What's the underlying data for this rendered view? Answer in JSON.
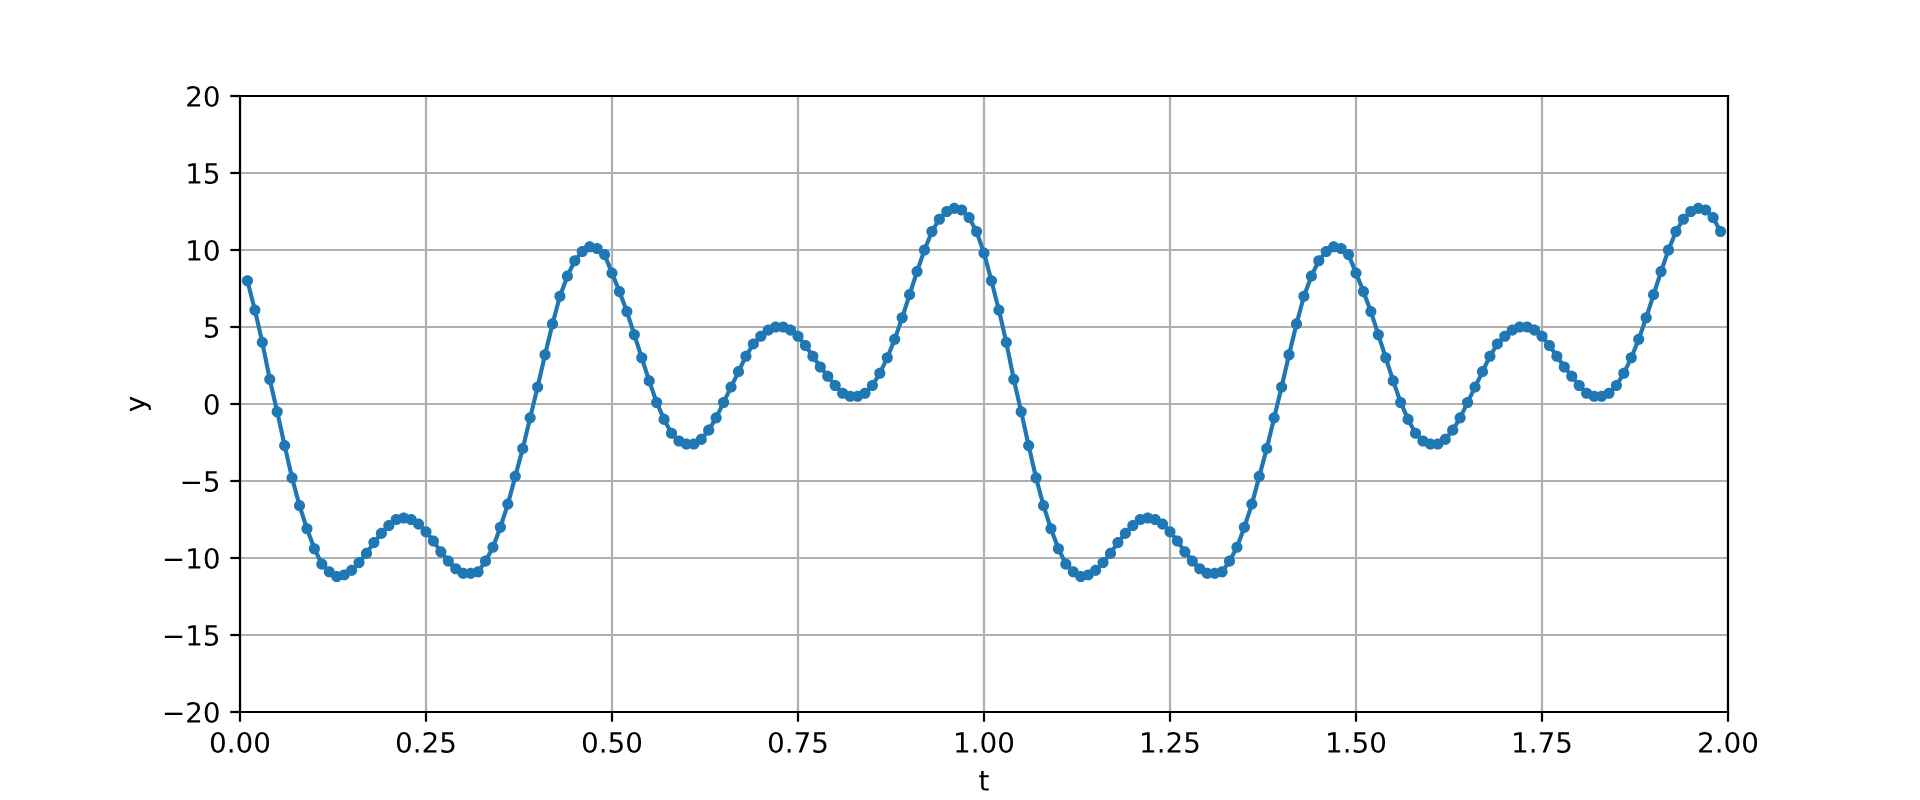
{
  "chart_data": {
    "type": "line",
    "xlabel": "t",
    "ylabel": "y",
    "x": [
      0.01,
      0.02,
      0.03,
      0.04,
      0.05,
      0.06,
      0.07,
      0.08,
      0.09,
      0.1,
      0.11,
      0.12,
      0.13,
      0.14,
      0.15,
      0.16,
      0.17,
      0.18,
      0.19,
      0.2,
      0.21,
      0.22,
      0.23,
      0.24,
      0.25,
      0.26,
      0.27,
      0.28,
      0.29,
      0.3,
      0.31,
      0.32,
      0.33,
      0.34,
      0.35,
      0.36,
      0.37,
      0.38,
      0.39,
      0.4,
      0.41,
      0.42,
      0.43,
      0.44,
      0.45,
      0.46,
      0.47,
      0.48,
      0.49,
      0.5,
      0.51,
      0.52,
      0.53,
      0.54,
      0.55,
      0.56,
      0.57,
      0.58,
      0.59,
      0.6,
      0.61,
      0.62,
      0.63,
      0.64,
      0.65,
      0.66,
      0.67,
      0.68,
      0.69,
      0.7,
      0.71,
      0.72,
      0.73,
      0.74,
      0.75,
      0.76,
      0.77,
      0.78,
      0.79,
      0.8,
      0.81,
      0.82,
      0.83,
      0.84,
      0.85,
      0.86,
      0.87,
      0.88,
      0.89,
      0.9,
      0.91,
      0.92,
      0.93,
      0.94,
      0.95,
      0.96,
      0.97,
      0.98,
      0.99,
      1.0,
      1.01,
      1.02,
      1.03,
      1.04,
      1.05,
      1.06,
      1.07,
      1.08,
      1.09,
      1.1,
      1.11,
      1.12,
      1.13,
      1.14,
      1.15,
      1.16,
      1.17,
      1.18,
      1.19,
      1.2,
      1.21,
      1.22,
      1.23,
      1.24,
      1.25,
      1.26,
      1.27,
      1.28,
      1.29,
      1.3,
      1.31,
      1.32,
      1.33,
      1.34,
      1.35,
      1.36,
      1.37,
      1.38,
      1.39,
      1.4,
      1.41,
      1.42,
      1.43,
      1.44,
      1.45,
      1.46,
      1.47,
      1.48,
      1.49,
      1.5,
      1.51,
      1.52,
      1.53,
      1.54,
      1.55,
      1.56,
      1.57,
      1.58,
      1.59,
      1.6,
      1.61,
      1.62,
      1.63,
      1.64,
      1.65,
      1.66,
      1.67,
      1.68,
      1.69,
      1.7,
      1.71,
      1.72,
      1.73,
      1.74,
      1.75,
      1.76,
      1.77,
      1.78,
      1.79,
      1.8,
      1.81,
      1.82,
      1.83,
      1.84,
      1.85,
      1.86,
      1.87,
      1.88,
      1.89,
      1.9,
      1.91,
      1.92,
      1.93,
      1.94,
      1.95,
      1.96,
      1.97,
      1.98,
      1.99
    ],
    "series": [
      {
        "color": "#1f77b4",
        "values": [
          8.0,
          6.1,
          4.0,
          1.6,
          -0.5,
          -2.7,
          -4.8,
          -6.6,
          -8.1,
          -9.4,
          -10.4,
          -10.9,
          -11.2,
          -11.1,
          -10.8,
          -10.3,
          -9.7,
          -9.0,
          -8.4,
          -7.9,
          -7.5,
          -7.4,
          -7.5,
          -7.8,
          -8.3,
          -8.9,
          -9.6,
          -10.2,
          -10.7,
          -11.0,
          -11.0,
          -10.9,
          -10.2,
          -9.3,
          -8.0,
          -6.5,
          -4.7,
          -2.9,
          -0.9,
          1.1,
          3.2,
          5.2,
          7.0,
          8.3,
          9.3,
          9.9,
          10.2,
          10.1,
          9.7,
          8.5,
          7.3,
          6.0,
          4.5,
          3.0,
          1.5,
          0.1,
          -1.0,
          -1.9,
          -2.4,
          -2.6,
          -2.6,
          -2.3,
          -1.7,
          -0.9,
          0.1,
          1.1,
          2.1,
          3.1,
          3.9,
          4.4,
          4.8,
          5.0,
          5.0,
          4.8,
          4.4,
          3.8,
          3.1,
          2.4,
          1.8,
          1.2,
          0.7,
          0.5,
          0.5,
          0.7,
          1.2,
          2.0,
          3.0,
          4.2,
          5.6,
          7.1,
          8.6,
          10.0,
          11.2,
          12.0,
          12.5,
          12.7,
          12.6,
          12.1,
          11.2,
          9.8,
          8.0,
          6.1,
          4.0,
          1.6,
          -0.5,
          -2.7,
          -4.8,
          -6.6,
          -8.1,
          -9.4,
          -10.4,
          -10.9,
          -11.2,
          -11.1,
          -10.8,
          -10.3,
          -9.7,
          -9.0,
          -8.4,
          -7.9,
          -7.5,
          -7.4,
          -7.5,
          -7.8,
          -8.3,
          -8.9,
          -9.6,
          -10.2,
          -10.7,
          -11.0,
          -11.0,
          -10.9,
          -10.2,
          -9.3,
          -8.0,
          -6.5,
          -4.7,
          -2.9,
          -0.9,
          1.1,
          3.2,
          5.2,
          7.0,
          8.3,
          9.3,
          9.9,
          10.2,
          10.1,
          9.7,
          8.5,
          7.3,
          6.0,
          4.5,
          3.0,
          1.5,
          0.1,
          -1.0,
          -1.9,
          -2.4,
          -2.6,
          -2.6,
          -2.3,
          -1.7,
          -0.9,
          0.1,
          1.1,
          2.1,
          3.1,
          3.9,
          4.4,
          4.8,
          5.0,
          5.0,
          4.8,
          4.4,
          3.8,
          3.1,
          2.4,
          1.8,
          1.2,
          0.7,
          0.5,
          0.5,
          0.7,
          1.2,
          2.0,
          3.0,
          4.2,
          5.6,
          7.1,
          8.6,
          10.0,
          11.2,
          12.0,
          12.5,
          12.7,
          12.6,
          12.1,
          11.2
        ]
      }
    ],
    "xlim": [
      0,
      2
    ],
    "xticks": [
      {
        "value": 0,
        "label": "0.00"
      },
      {
        "value": 0.25,
        "label": "0.25"
      },
      {
        "value": 0.5,
        "label": "0.50"
      },
      {
        "value": 0.75,
        "label": "0.75"
      },
      {
        "value": 1,
        "label": "1.00"
      },
      {
        "value": 1.25,
        "label": "1.25"
      },
      {
        "value": 1.5,
        "label": "1.50"
      },
      {
        "value": 1.75,
        "label": "1.75"
      },
      {
        "value": 2,
        "label": "2.00"
      }
    ],
    "ylim": [
      -20,
      20
    ],
    "yticks": [
      {
        "value": -20,
        "label": "−20"
      },
      {
        "value": -15,
        "label": "−15"
      },
      {
        "value": -10,
        "label": "−10"
      },
      {
        "value": -5,
        "label": "−5"
      },
      0,
      5,
      10,
      15,
      20
    ],
    "grid": true,
    "marker": "circle",
    "line_style": "solid"
  }
}
